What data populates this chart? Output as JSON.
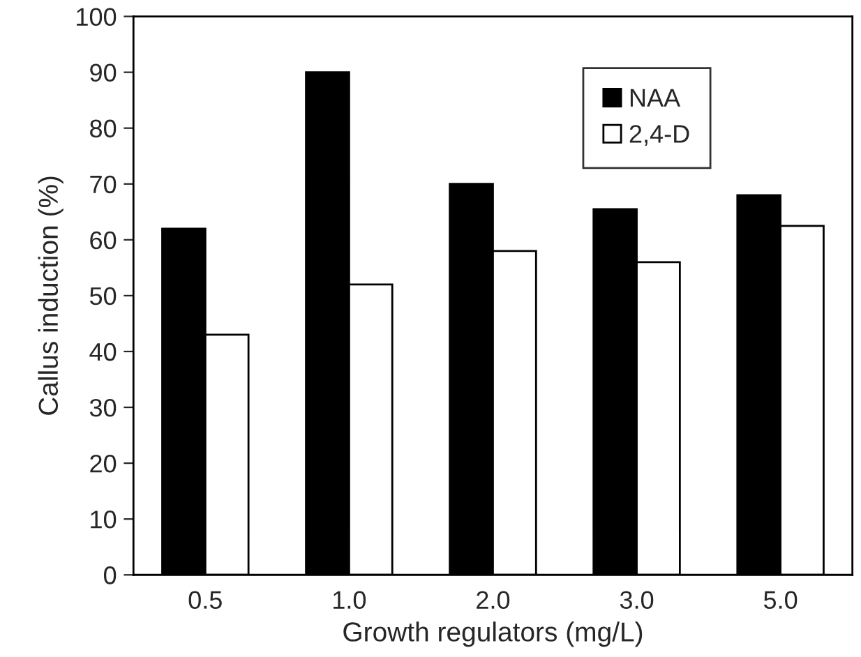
{
  "chart_data": {
    "type": "bar",
    "xlabel": "Growth regulators (mg/L)",
    "ylabel": "Callus induction (%)",
    "categories": [
      "0.5",
      "1.0",
      "2.0",
      "3.0",
      "5.0"
    ],
    "series": [
      {
        "name": "NAA",
        "color": "#000000",
        "values": [
          62,
          90,
          70,
          65.5,
          68
        ]
      },
      {
        "name": "2,4-D",
        "color": "#ffffff",
        "values": [
          43,
          52,
          58,
          56,
          62.5
        ]
      }
    ],
    "ylim": [
      0,
      100
    ],
    "yticks": [
      0,
      10,
      20,
      30,
      40,
      50,
      60,
      70,
      80,
      90,
      100
    ],
    "grid": false,
    "legend": "top right"
  }
}
